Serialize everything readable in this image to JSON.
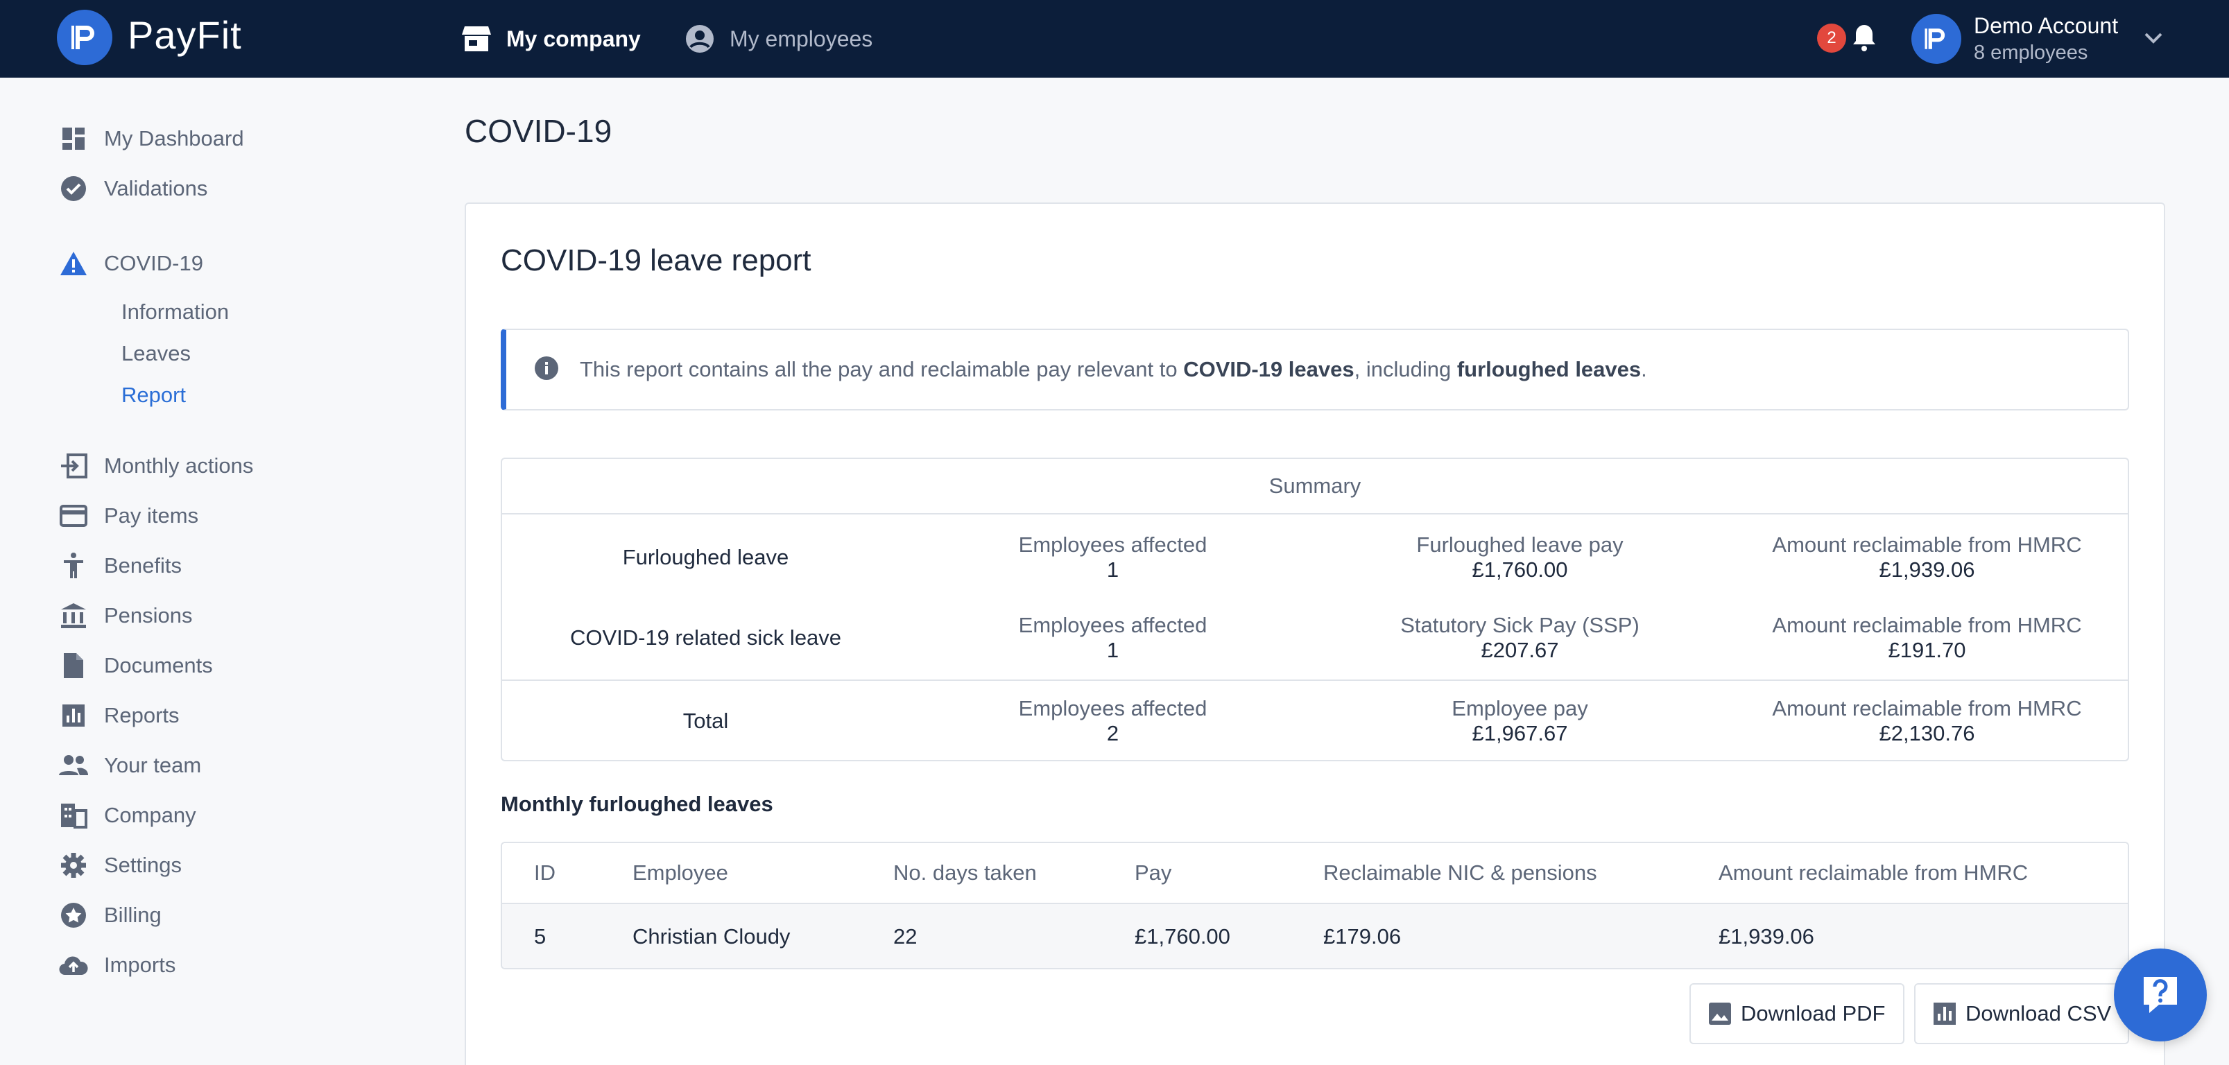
{
  "brand": {
    "name": "PayFit"
  },
  "topnav": {
    "company": "My company",
    "employees": "My employees"
  },
  "notifications": {
    "count": "2"
  },
  "account": {
    "name": "Demo Account",
    "subtitle": "8 employees"
  },
  "sidebar": {
    "items": [
      {
        "label": "My Dashboard",
        "icon": "dashboard-icon"
      },
      {
        "label": "Validations",
        "icon": "check-circle-icon"
      },
      {
        "label": "COVID-19",
        "icon": "warning-icon"
      },
      {
        "label": "Monthly actions",
        "icon": "login-arrow-icon"
      },
      {
        "label": "Pay items",
        "icon": "credit-card-icon"
      },
      {
        "label": "Benefits",
        "icon": "person-icon"
      },
      {
        "label": "Pensions",
        "icon": "bank-icon"
      },
      {
        "label": "Documents",
        "icon": "document-icon"
      },
      {
        "label": "Reports",
        "icon": "bar-chart-icon"
      },
      {
        "label": "Your team",
        "icon": "people-icon"
      },
      {
        "label": "Company",
        "icon": "building-icon"
      },
      {
        "label": "Settings",
        "icon": "gear-icon"
      },
      {
        "label": "Billing",
        "icon": "star-badge-icon"
      },
      {
        "label": "Imports",
        "icon": "cloud-upload-icon"
      }
    ],
    "covid_sub": [
      "Information",
      "Leaves",
      "Report"
    ],
    "active_sub": "Report"
  },
  "page": {
    "title": "COVID-19"
  },
  "report": {
    "title": "COVID-19 leave report",
    "info": {
      "prefix": "This report contains all the pay and reclaimable pay relevant to ",
      "bold1": "COVID-19 leaves",
      "middle": ", including ",
      "bold2": "furloughed leaves",
      "suffix": "."
    },
    "summary": {
      "header": "Summary",
      "rows": [
        {
          "name": "Furloughed leave",
          "c1_label": "Employees affected",
          "c1_value": "1",
          "c2_label": "Furloughed leave pay",
          "c2_value": "£1,760.00",
          "c3_label": "Amount reclaimable from HMRC",
          "c3_value": "£1,939.06"
        },
        {
          "name": "COVID-19 related sick leave",
          "c1_label": "Employees affected",
          "c1_value": "1",
          "c2_label": "Statutory Sick Pay (SSP)",
          "c2_value": "£207.67",
          "c3_label": "Amount reclaimable from HMRC",
          "c3_value": "£191.70"
        },
        {
          "name": "Total",
          "c1_label": "Employees affected",
          "c1_value": "2",
          "c2_label": "Employee pay",
          "c2_value": "£1,967.67",
          "c3_label": "Amount reclaimable from HMRC",
          "c3_value": "£2,130.76"
        }
      ]
    },
    "monthly": {
      "title": "Monthly furloughed leaves",
      "columns": [
        "ID",
        "Employee",
        "No. days taken",
        "Pay",
        "Reclaimable NIC & pensions",
        "Amount reclaimable from HMRC"
      ],
      "rows": [
        [
          "5",
          "Christian Cloudy",
          "22",
          "£1,760.00",
          "£179.06",
          "£1,939.06"
        ]
      ]
    },
    "buttons": {
      "pdf": "Download PDF",
      "csv": "Download CSV"
    }
  },
  "colors": {
    "topbar": "#0c1e3a",
    "accent": "#2d6bd6",
    "badge": "#e2483d"
  }
}
